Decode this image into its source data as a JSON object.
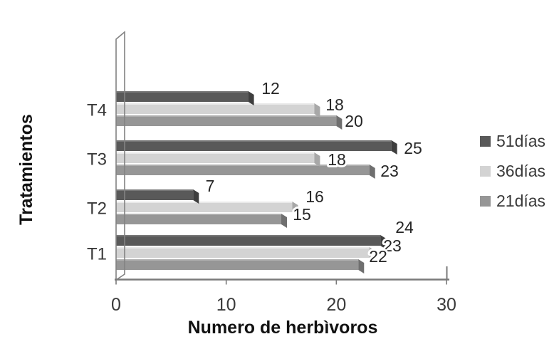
{
  "chart_data": {
    "type": "bar",
    "orientation": "horizontal",
    "style": "3d-effect-grayscale",
    "title": "",
    "xlabel": "Numero de herbìvoros",
    "ylabel": "Tratamientos",
    "categories": [
      "T1",
      "T2",
      "T3",
      "T4"
    ],
    "xticks": [
      "0",
      "10",
      "20",
      "30"
    ],
    "xlim": [
      0,
      30
    ],
    "grid": false,
    "legend_position": "right",
    "data_labels_shown": true,
    "series": [
      {
        "name": "51días",
        "values": [
          24,
          7,
          25,
          12
        ],
        "color": "#595959",
        "cap_color": "#3e3e3e",
        "highlight_color": "#777777"
      },
      {
        "name": "36días",
        "values": [
          23,
          16,
          18,
          18
        ],
        "color": "#d3d3d3",
        "cap_color": "#a8a8a8",
        "highlight_color": "#e9e9e9"
      },
      {
        "name": "21días",
        "values": [
          22,
          15,
          23,
          20
        ],
        "color": "#969696",
        "cap_color": "#6f6f6f",
        "highlight_color": "#aeaeae"
      }
    ]
  },
  "colors": {
    "background": "#ffffff",
    "axis": "#7a7a7a",
    "wall": "#828282",
    "data_label_text": "#262626",
    "tick_text": "#3a3a3a",
    "category_text": "#3a3a3a",
    "title_text": "#111111",
    "legend_text": "#3a3a3a"
  }
}
